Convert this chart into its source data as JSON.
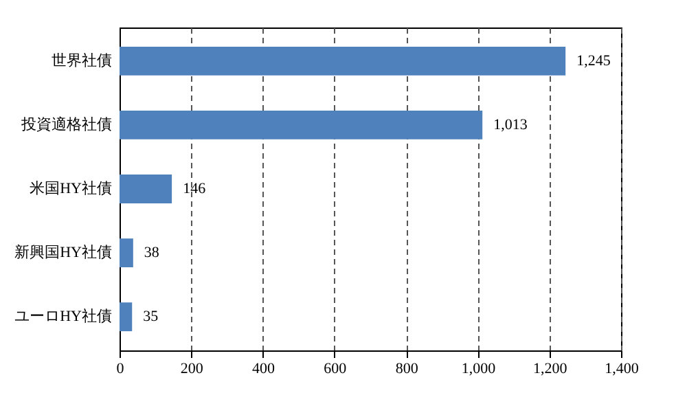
{
  "chart_data": {
    "type": "bar",
    "orientation": "horizontal",
    "categories": [
      "世界社債",
      "投資適格社債",
      "米国HY社債",
      "新興国HY社債",
      "ユーロHY社債"
    ],
    "values": [
      1245,
      1013,
      146,
      38,
      35
    ],
    "value_labels": [
      "1,245",
      "1,013",
      "146",
      "38",
      "35"
    ],
    "color": "#4f81bd",
    "xlim": [
      0,
      1400
    ],
    "xticks": [
      0,
      200,
      400,
      600,
      800,
      {
        "value": 1000,
        "label": "1,000"
      },
      {
        "value": 1200,
        "label": "1,200"
      },
      {
        "value": 1400,
        "label": "1,400"
      }
    ],
    "grid": "x"
  }
}
